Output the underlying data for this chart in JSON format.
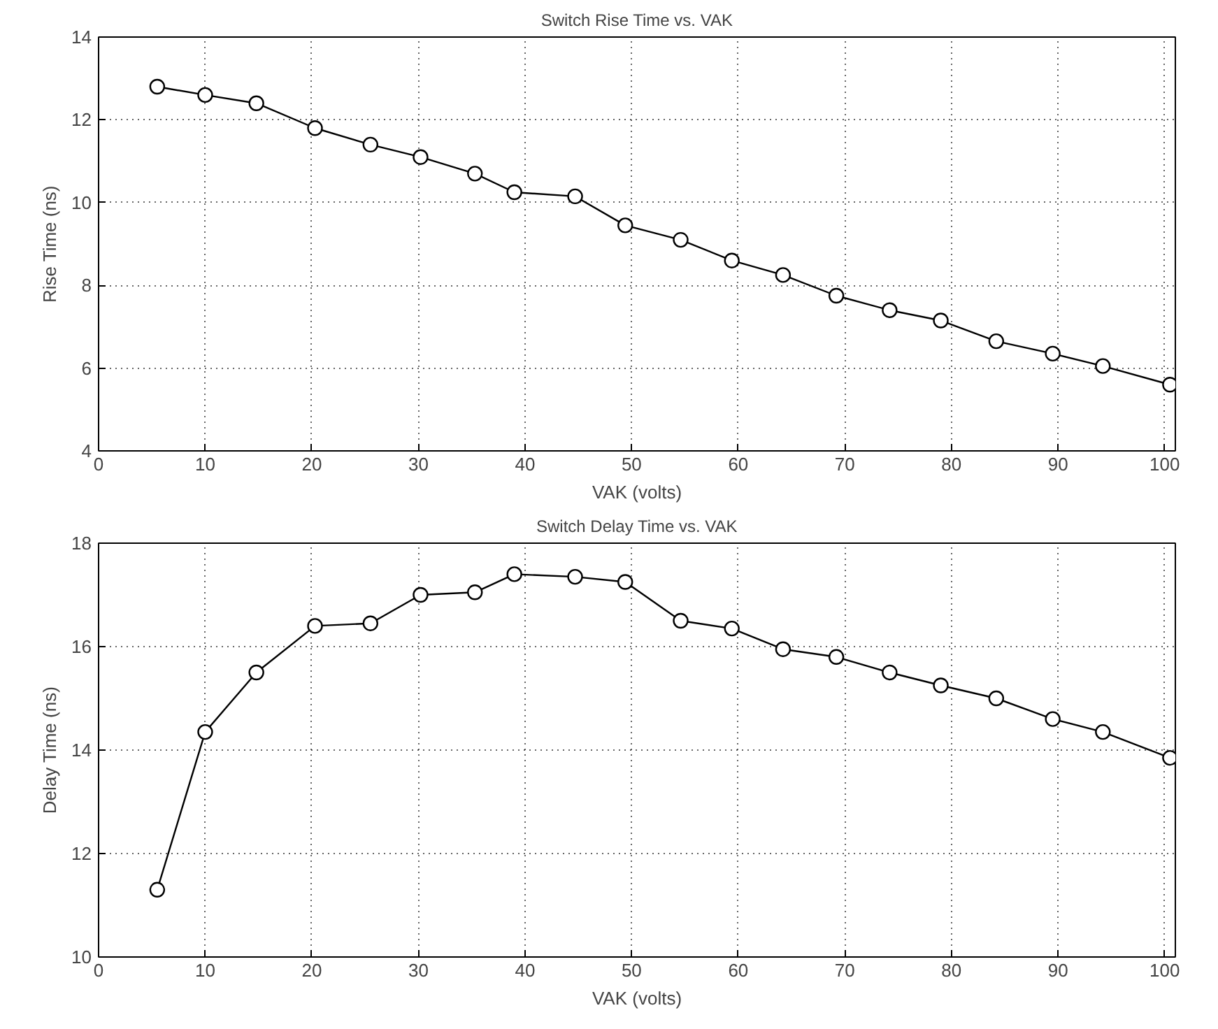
{
  "chart_data": [
    {
      "type": "line",
      "title": "Switch Rise Time vs. VAK",
      "xlabel": "VAK (volts)",
      "ylabel": "Rise Time (ns)",
      "marker": "circle",
      "line_style": "solid",
      "grid": true,
      "xlim": [
        0,
        101
      ],
      "xticks": [
        0,
        10,
        20,
        30,
        40,
        50,
        60,
        70,
        80,
        90,
        100
      ],
      "ylim": [
        4,
        14
      ],
      "yticks": [
        4,
        6,
        8,
        10,
        12,
        14
      ],
      "x": [
        5.5,
        10,
        14.8,
        20.3,
        25.5,
        30.2,
        35.3,
        39,
        44.7,
        49.4,
        54.6,
        59.4,
        64.2,
        69.2,
        74.2,
        79,
        84.2,
        89.5,
        94.2,
        100.5
      ],
      "series": [
        {
          "color": "#000000",
          "values": [
            12.8,
            12.6,
            12.4,
            11.8,
            11.4,
            11.1,
            10.7,
            10.25,
            10.15,
            9.45,
            9.1,
            8.6,
            8.25,
            7.75,
            7.4,
            7.15,
            6.65,
            6.35,
            6.05,
            5.6
          ]
        }
      ]
    },
    {
      "type": "line",
      "title": "Switch Delay Time vs. VAK",
      "xlabel": "VAK (volts)",
      "ylabel": "Delay Time (ns)",
      "marker": "circle",
      "line_style": "solid",
      "grid": true,
      "xlim": [
        0,
        101
      ],
      "xticks": [
        0,
        10,
        20,
        30,
        40,
        50,
        60,
        70,
        80,
        90,
        100
      ],
      "ylim": [
        10,
        18
      ],
      "yticks": [
        10,
        12,
        14,
        16,
        18
      ],
      "x": [
        5.5,
        10,
        14.8,
        20.3,
        25.5,
        30.2,
        35.3,
        39,
        44.7,
        49.4,
        54.6,
        59.4,
        64.2,
        69.2,
        74.2,
        79,
        84.2,
        89.5,
        94.2,
        100.5
      ],
      "series": [
        {
          "color": "#000000",
          "values": [
            11.3,
            14.35,
            15.5,
            16.4,
            16.45,
            17.0,
            17.05,
            17.4,
            17.35,
            17.25,
            16.5,
            16.35,
            15.95,
            15.8,
            15.5,
            15.25,
            15.0,
            14.6,
            14.35,
            13.85
          ]
        }
      ]
    }
  ]
}
